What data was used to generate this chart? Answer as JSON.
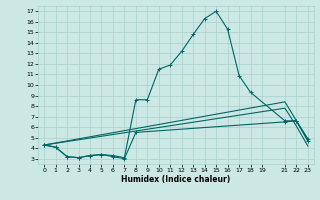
{
  "xlabel": "Humidex (Indice chaleur)",
  "bg_color": "#cce8e4",
  "grid_color": "#aad0ca",
  "line_color": "#006666",
  "xlim": [
    -0.5,
    23.5
  ],
  "ylim": [
    2.5,
    17.5
  ],
  "xticks": [
    0,
    1,
    2,
    3,
    4,
    5,
    6,
    7,
    8,
    9,
    10,
    11,
    12,
    13,
    14,
    15,
    16,
    17,
    18,
    19,
    21,
    22,
    23
  ],
  "yticks": [
    3,
    4,
    5,
    6,
    7,
    8,
    9,
    10,
    11,
    12,
    13,
    14,
    15,
    16,
    17
  ],
  "line1_x": [
    0,
    1,
    2,
    3,
    4,
    5,
    6,
    7,
    8,
    9,
    10,
    11,
    12,
    13,
    14,
    15,
    16,
    17,
    18,
    21,
    22,
    23
  ],
  "line1_y": [
    4.3,
    4.1,
    3.2,
    3.1,
    3.3,
    3.4,
    3.3,
    3.1,
    8.6,
    8.6,
    11.5,
    11.9,
    13.2,
    14.8,
    16.3,
    17.0,
    15.3,
    10.9,
    9.3,
    6.6,
    6.6,
    4.7
  ],
  "line2_x": [
    0,
    1,
    2,
    3,
    4,
    5,
    6,
    7,
    8,
    21,
    22,
    23
  ],
  "line2_y": [
    4.3,
    4.1,
    3.2,
    3.1,
    3.3,
    3.4,
    3.2,
    3.0,
    5.5,
    6.5,
    6.6,
    4.9
  ],
  "line3_x": [
    0,
    21,
    22,
    23
  ],
  "line3_y": [
    4.3,
    8.4,
    6.6,
    4.7
  ],
  "line4_x": [
    0,
    21,
    22,
    23
  ],
  "line4_y": [
    4.3,
    7.8,
    6.1,
    4.2
  ]
}
